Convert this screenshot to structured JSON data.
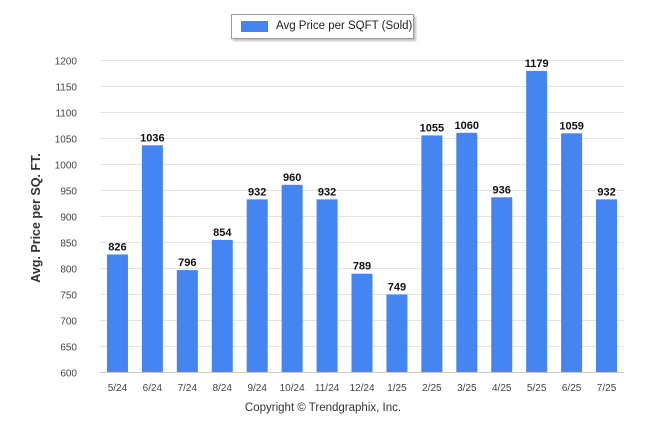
{
  "chart_data": {
    "type": "bar",
    "categories": [
      "5/24",
      "6/24",
      "7/24",
      "8/24",
      "9/24",
      "10/24",
      "11/24",
      "12/24",
      "1/25",
      "2/25",
      "3/25",
      "4/25",
      "5/25",
      "6/25",
      "7/25"
    ],
    "series": [
      {
        "name": "Avg Price per SQFT (Sold)",
        "values": [
          826,
          1036,
          796,
          854,
          932,
          960,
          932,
          789,
          749,
          1055,
          1060,
          936,
          1179,
          1059,
          932
        ]
      }
    ],
    "ylabel": "Avg. Price per SQ. FT.",
    "xlabel": "",
    "ylim": [
      600,
      1200
    ],
    "yticks": [
      600,
      650,
      700,
      750,
      800,
      850,
      900,
      950,
      1000,
      1050,
      1100,
      1150,
      1200
    ],
    "grid": true,
    "legend_position": "top-center",
    "bar_color": "#4585f1"
  },
  "footer": {
    "copyright": "Copyright © Trendgraphix, Inc."
  }
}
